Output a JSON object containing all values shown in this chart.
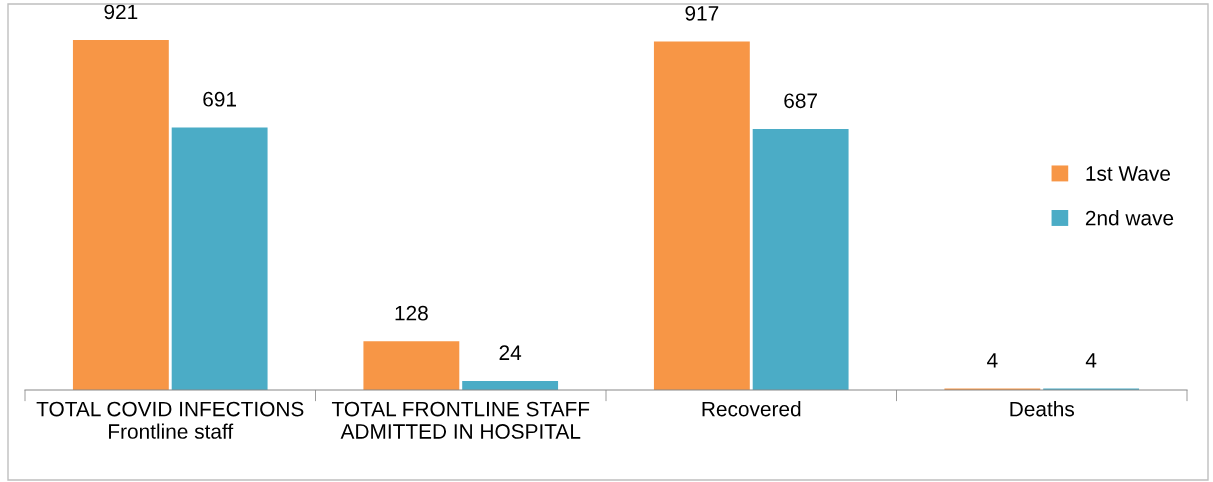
{
  "chart_data": {
    "type": "bar",
    "categories": [
      "TOTAL COVID INFECTIONS\nFrontline staff",
      "TOTAL FRONTLINE STAFF\nADMITTED IN HOSPITAL",
      "Recovered",
      "Deaths"
    ],
    "series": [
      {
        "name": "1st Wave",
        "color": "#f79646",
        "values": [
          921,
          128,
          917,
          4
        ]
      },
      {
        "name": "2nd wave",
        "color": "#4bacc6",
        "values": [
          691,
          24,
          687,
          4
        ]
      }
    ],
    "data_labels": true,
    "legend": "right",
    "grid": false
  }
}
